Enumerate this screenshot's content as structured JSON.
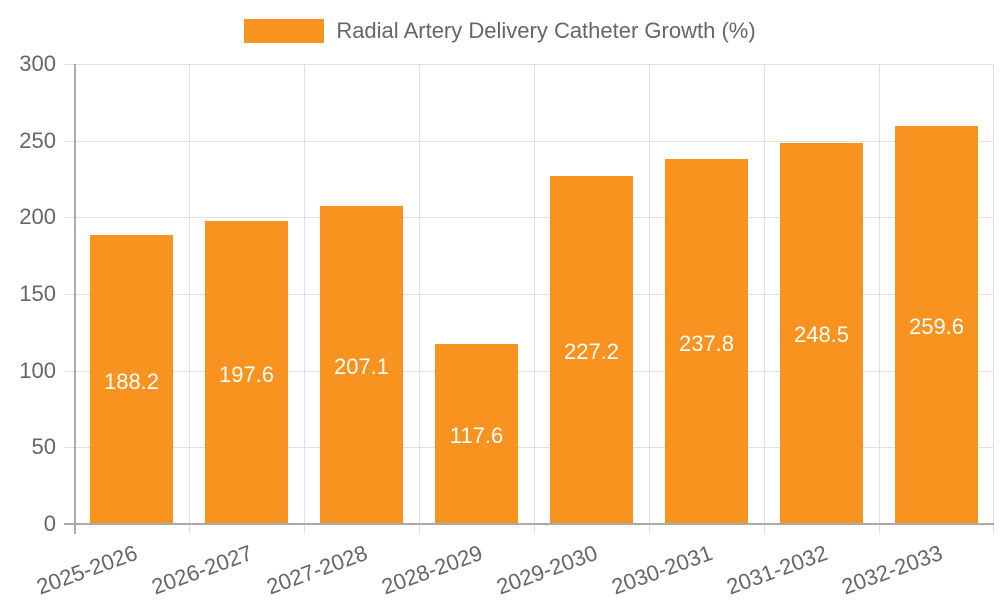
{
  "legend": {
    "label": "Radial Artery Delivery Catheter Growth (%)",
    "color": "#F7931E"
  },
  "y_axis": {
    "ticks": [
      "300",
      "250",
      "200",
      "150",
      "100",
      "50",
      "0"
    ]
  },
  "x_axis": {
    "ticks": [
      "2025-2026",
      "2026-2027",
      "2027-2028",
      "2028-2029",
      "2029-2030",
      "2030-2031",
      "2031-2032",
      "2032-2033"
    ]
  },
  "bars": [
    {
      "category": "2025-2026",
      "value": 188.2,
      "label": "188.2"
    },
    {
      "category": "2026-2027",
      "value": 197.6,
      "label": "197.6"
    },
    {
      "category": "2027-2028",
      "value": 207.1,
      "label": "207.1"
    },
    {
      "category": "2028-2029",
      "value": 117.6,
      "label": "117.6"
    },
    {
      "category": "2029-2030",
      "value": 227.2,
      "label": "227.2"
    },
    {
      "category": "2030-2031",
      "value": 237.8,
      "label": "237.8"
    },
    {
      "category": "2031-2032",
      "value": 248.5,
      "label": "248.5"
    },
    {
      "category": "2032-2033",
      "value": 259.6,
      "label": "259.6"
    }
  ],
  "chart_data": {
    "type": "bar",
    "title": "",
    "categories": [
      "2025-2026",
      "2026-2027",
      "2027-2028",
      "2028-2029",
      "2029-2030",
      "2030-2031",
      "2031-2032",
      "2032-2033"
    ],
    "series": [
      {
        "name": "Radial Artery Delivery Catheter Growth (%)",
        "values": [
          188.2,
          197.6,
          207.1,
          117.6,
          227.2,
          237.8,
          248.5,
          259.6
        ],
        "color": "#F7931E"
      }
    ],
    "xlabel": "",
    "ylabel": "",
    "ylim": [
      0,
      300
    ],
    "yticks": [
      0,
      50,
      100,
      150,
      200,
      250,
      300
    ],
    "grid": true,
    "legend_position": "top",
    "data_labels": true
  }
}
